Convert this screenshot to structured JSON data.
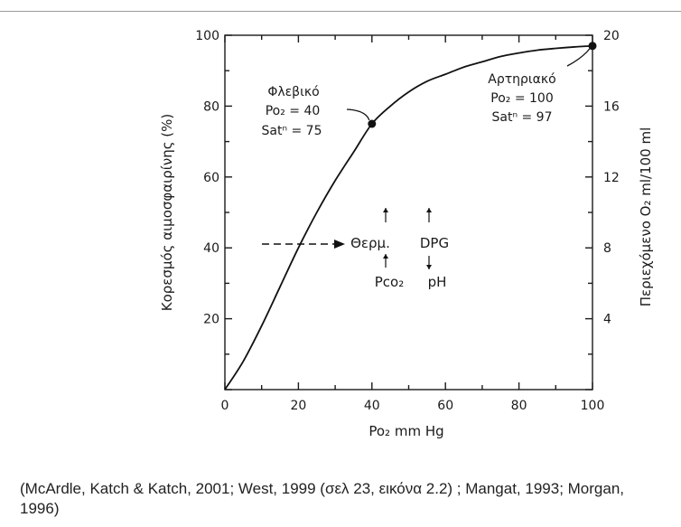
{
  "chart_data": {
    "type": "line",
    "xlabel": "Po₂ mm Hg",
    "ylabel": "Κορεσμός αιμοσφαιρίνης (%)",
    "y2label": "Περιεχόμενο O₂ ml/100 ml",
    "xlim": [
      0,
      100
    ],
    "ylim": [
      0,
      100
    ],
    "y2lim": [
      0,
      20
    ],
    "x_ticks": [
      0,
      20,
      40,
      60,
      80,
      100
    ],
    "y_ticks": [
      20,
      40,
      60,
      80,
      100
    ],
    "y2_ticks": [
      4,
      8,
      12,
      16,
      20
    ],
    "grid": false,
    "series": [
      {
        "x": [
          0,
          5,
          10,
          15,
          20,
          25,
          30,
          35,
          40,
          45,
          50,
          55,
          60,
          65,
          70,
          75,
          80,
          85,
          90,
          95,
          100
        ],
        "y": [
          0,
          8,
          18,
          29,
          40,
          50,
          59,
          67,
          75,
          80,
          84,
          87,
          89,
          91,
          92.5,
          94,
          95,
          95.8,
          96.3,
          96.7,
          97
        ]
      }
    ],
    "points": [
      {
        "x": 40,
        "y": 75
      },
      {
        "x": 100,
        "y": 97
      }
    ],
    "annotations": {
      "venous": {
        "title": "Φλεβικό",
        "line1": "Po₂ = 40",
        "line2": "Satⁿ = 75"
      },
      "arterial": {
        "title": "Αρτηριακό",
        "line1": "Po₂ = 100",
        "line2": "Satⁿ = 97"
      },
      "factors": {
        "temp": "Θερμ.",
        "dpg": "DPG",
        "pco2": "Pco₂",
        "ph": "pH"
      }
    }
  },
  "citation": "(McArdle, Katch & Katch, 2001; West, 1999 (σελ 23, εικόνα 2.2) ; Mangat, 1993; Morgan, 1996)"
}
